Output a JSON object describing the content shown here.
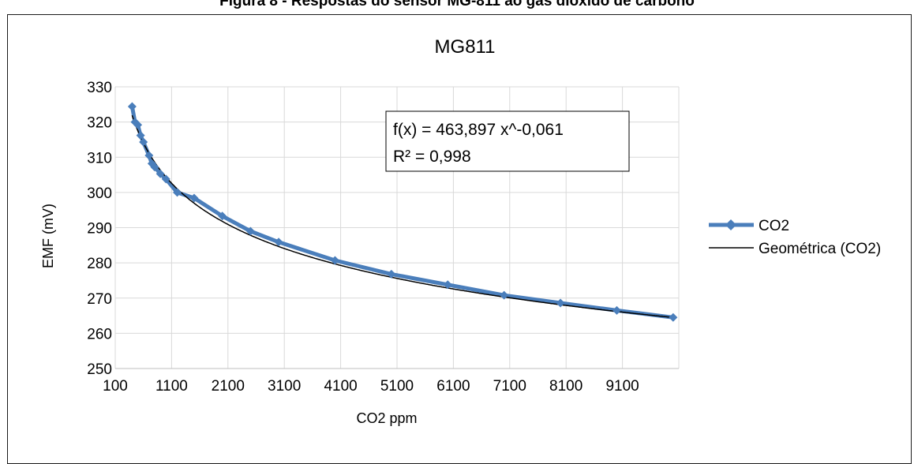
{
  "caption": "Figura 8 - Respostas do sensor MG-811 ao gás dióxido de carbono",
  "chart_data": {
    "type": "scatter",
    "title": "MG811",
    "xlabel": "CO2 ppm",
    "ylabel": "EMF (mV)",
    "xlim": [
      100,
      10100
    ],
    "ylim": [
      250,
      330
    ],
    "xticks": [
      "100",
      "1100",
      "2100",
      "3100",
      "4100",
      "5100",
      "6100",
      "7100",
      "8100",
      "9100"
    ],
    "yticks": [
      "250",
      "260",
      "270",
      "280",
      "290",
      "300",
      "310",
      "320",
      "330"
    ],
    "grid": true,
    "legend_position": "right",
    "series": [
      {
        "name": "CO2",
        "color": "#4a7ebb",
        "marker": "diamond",
        "x": [
          400,
          450,
          500,
          550,
          600,
          700,
          750,
          800,
          900,
          1000,
          1200,
          1500,
          2000,
          2500,
          3000,
          4000,
          5000,
          6000,
          7000,
          8000,
          9000,
          10000
        ],
        "y": [
          324.4,
          320.0,
          319.2,
          316.2,
          314.3,
          310.5,
          308.2,
          307.2,
          305.3,
          303.8,
          300.0,
          298.4,
          293.3,
          289.0,
          285.9,
          280.7,
          276.8,
          273.8,
          270.8,
          268.6,
          266.5,
          264.5
        ]
      },
      {
        "name": "Geométrica (CO2)",
        "color": "#000000",
        "trendline": "power",
        "a": 463.897,
        "b": -0.061
      }
    ],
    "annotation": {
      "equation": "f(x) = 463,897 x^-0,061",
      "r2": "R² = 0,998"
    }
  }
}
